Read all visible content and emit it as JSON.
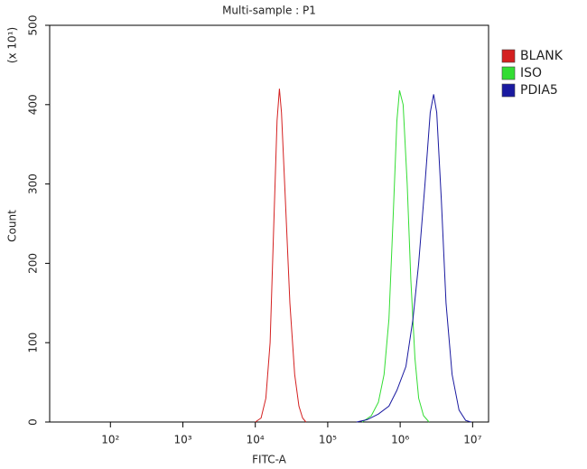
{
  "chart_data": {
    "type": "histogram-overlay",
    "title": "Multi-sample : P1",
    "x_label": "FITC-A",
    "y_label": "Count",
    "y_multiplier": "(x 10¹)",
    "x_log": true,
    "xlim": [
      14.5,
      16600000
    ],
    "ylim": [
      0,
      500
    ],
    "xticks": [
      {
        "value": 100,
        "label": "10²"
      },
      {
        "value": 1000,
        "label": "10³"
      },
      {
        "value": 10000,
        "label": "10⁴"
      },
      {
        "value": 100000,
        "label": "10⁵"
      },
      {
        "value": 1000000,
        "label": "10⁶"
      },
      {
        "value": 10000000,
        "label": "10⁷"
      }
    ],
    "yticks": [
      0,
      100,
      200,
      300,
      400,
      500
    ],
    "legend_position": "right",
    "series": [
      {
        "name": "BLANK",
        "color": "#d42020",
        "x": [
          10000,
          12000,
          14000,
          16000,
          18000,
          20000,
          21500,
          23000,
          26000,
          30000,
          35000,
          40000,
          45000,
          50000
        ],
        "values": [
          0,
          5,
          30,
          100,
          250,
          380,
          420,
          390,
          280,
          150,
          60,
          20,
          5,
          0
        ]
      },
      {
        "name": "ISO",
        "color": "#33dd33",
        "x": [
          300000,
          400000,
          500000,
          600000,
          700000,
          800000,
          900000,
          980000,
          1100000,
          1250000,
          1400000,
          1600000,
          1800000,
          2100000,
          2500000
        ],
        "values": [
          0,
          8,
          25,
          60,
          130,
          260,
          380,
          418,
          400,
          300,
          180,
          80,
          30,
          8,
          0
        ]
      },
      {
        "name": "PDIA5",
        "color": "#1a1aa0",
        "x": [
          250000,
          350000,
          500000,
          700000,
          900000,
          1200000,
          1500000,
          1800000,
          2200000,
          2600000,
          2900000,
          3200000,
          3700000,
          4300000,
          5200000,
          6500000,
          8000000,
          9500000
        ],
        "values": [
          0,
          3,
          10,
          20,
          40,
          70,
          130,
          200,
          300,
          390,
          413,
          390,
          280,
          150,
          60,
          15,
          2,
          0
        ]
      }
    ]
  }
}
